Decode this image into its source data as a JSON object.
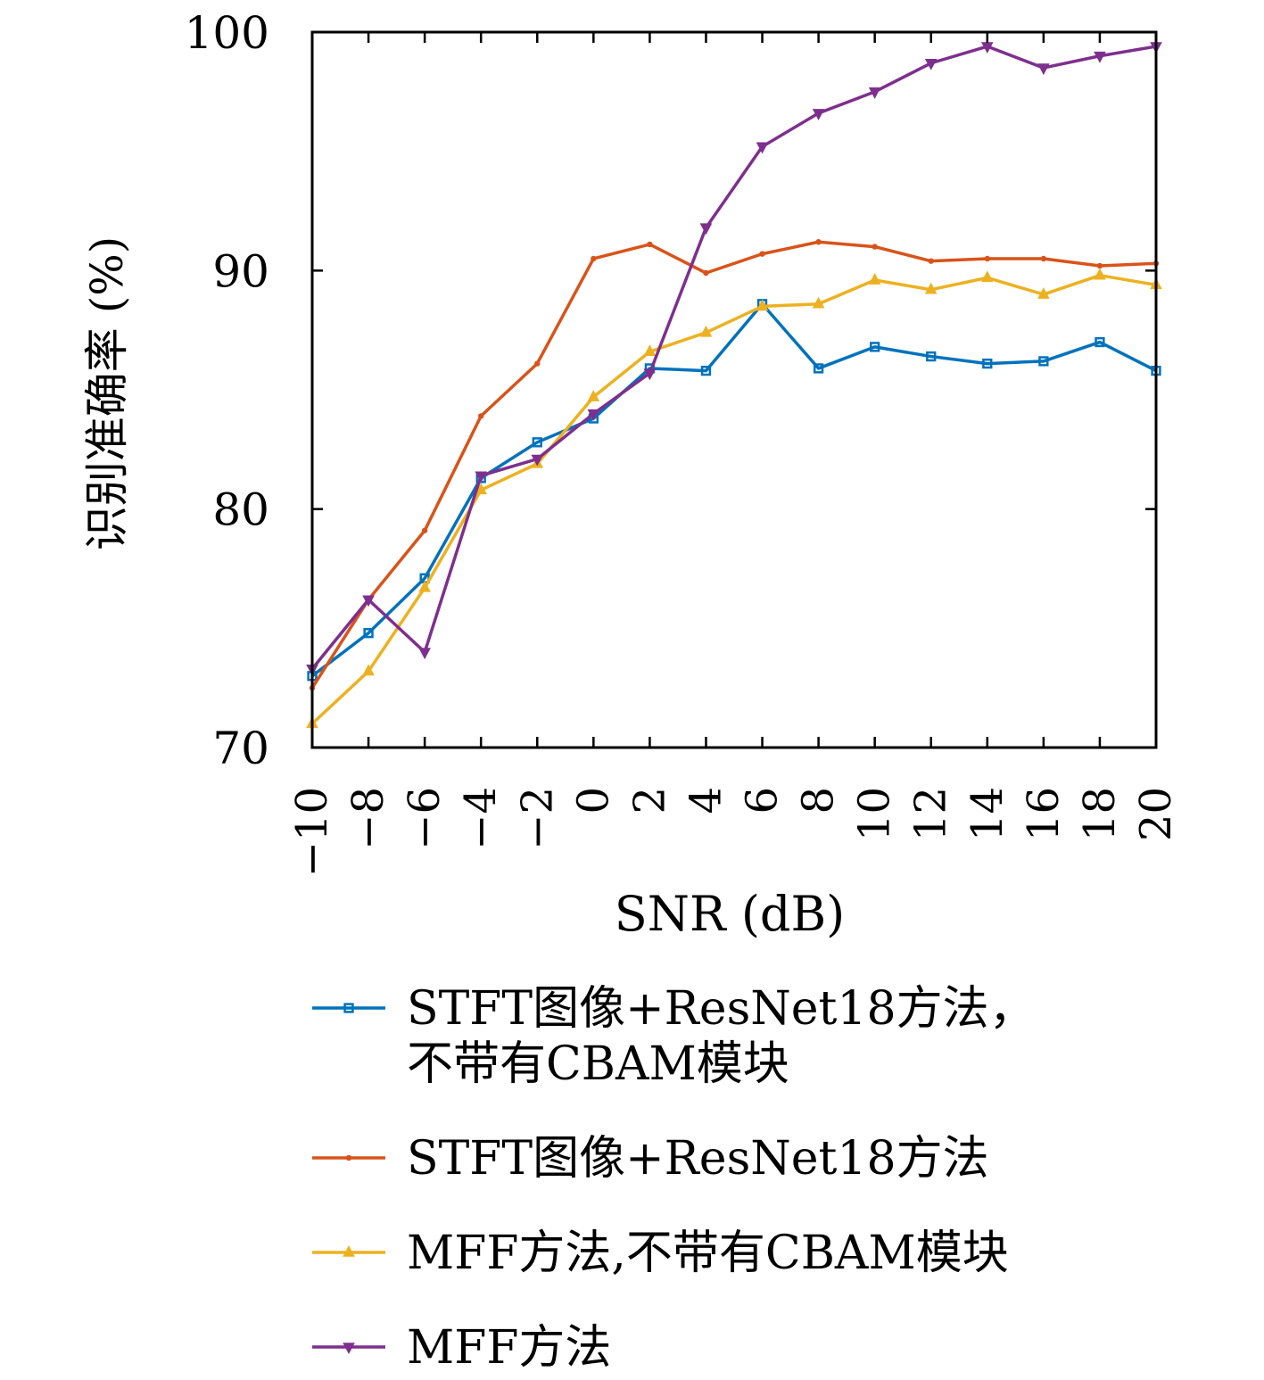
{
  "chart_data": {
    "type": "line",
    "title": "",
    "xlabel": "SNR (dB)",
    "ylabel": "识别准确率 (%)",
    "x": [
      -10,
      -8,
      -6,
      -4,
      -2,
      0,
      2,
      4,
      6,
      8,
      10,
      12,
      14,
      16,
      18,
      20
    ],
    "x_tick_labels": [
      "−10",
      "−8",
      "−6",
      "−4",
      "−2",
      "0",
      "2",
      "4",
      "6",
      "8",
      "10",
      "12",
      "14",
      "16",
      "18",
      "20"
    ],
    "yticks": [
      70,
      80,
      90,
      100
    ],
    "y_tick_labels": [
      "70",
      "80",
      "90",
      "100"
    ],
    "xlim": [
      -10,
      20
    ],
    "ylim": [
      70,
      100
    ],
    "grid": false,
    "legend_position": "bottom",
    "series": [
      {
        "name": "STFT图像+ResNet18方法，不带有CBAM模块",
        "legend_lines": [
          "STFT图像+ResNet18方法，",
          "不带有CBAM模块"
        ],
        "color": "#0072bd",
        "marker": "square",
        "values": [
          73.0,
          74.8,
          77.1,
          81.3,
          82.8,
          83.8,
          85.9,
          85.8,
          88.6,
          85.9,
          86.8,
          86.4,
          86.1,
          86.2,
          87.0,
          85.8
        ]
      },
      {
        "name": "STFT图像+ResNet18方法",
        "legend_lines": [
          "STFT图像+ResNet18方法"
        ],
        "color": "#d95319",
        "marker": "dot",
        "values": [
          72.5,
          76.2,
          79.1,
          83.9,
          86.1,
          90.5,
          91.1,
          89.9,
          90.7,
          91.2,
          91.0,
          90.4,
          90.5,
          90.5,
          90.2,
          90.3
        ]
      },
      {
        "name": "MFF方法,不带有CBAM模块",
        "legend_lines": [
          "MFF方法,不带有CBAM模块"
        ],
        "color": "#edb120",
        "marker": "triangle-up",
        "values": [
          71.0,
          73.2,
          76.7,
          80.8,
          81.9,
          84.7,
          86.6,
          87.4,
          88.5,
          88.6,
          89.6,
          89.2,
          89.7,
          89.0,
          89.8,
          89.4
        ]
      },
      {
        "name": "MFF方法",
        "legend_lines": [
          "MFF方法"
        ],
        "color": "#7e2f8e",
        "marker": "triangle-down",
        "values": [
          73.3,
          76.2,
          74.0,
          81.4,
          82.1,
          84.0,
          85.7,
          91.8,
          95.2,
          96.6,
          97.5,
          98.7,
          99.4,
          98.5,
          99.0,
          99.4
        ]
      }
    ]
  }
}
